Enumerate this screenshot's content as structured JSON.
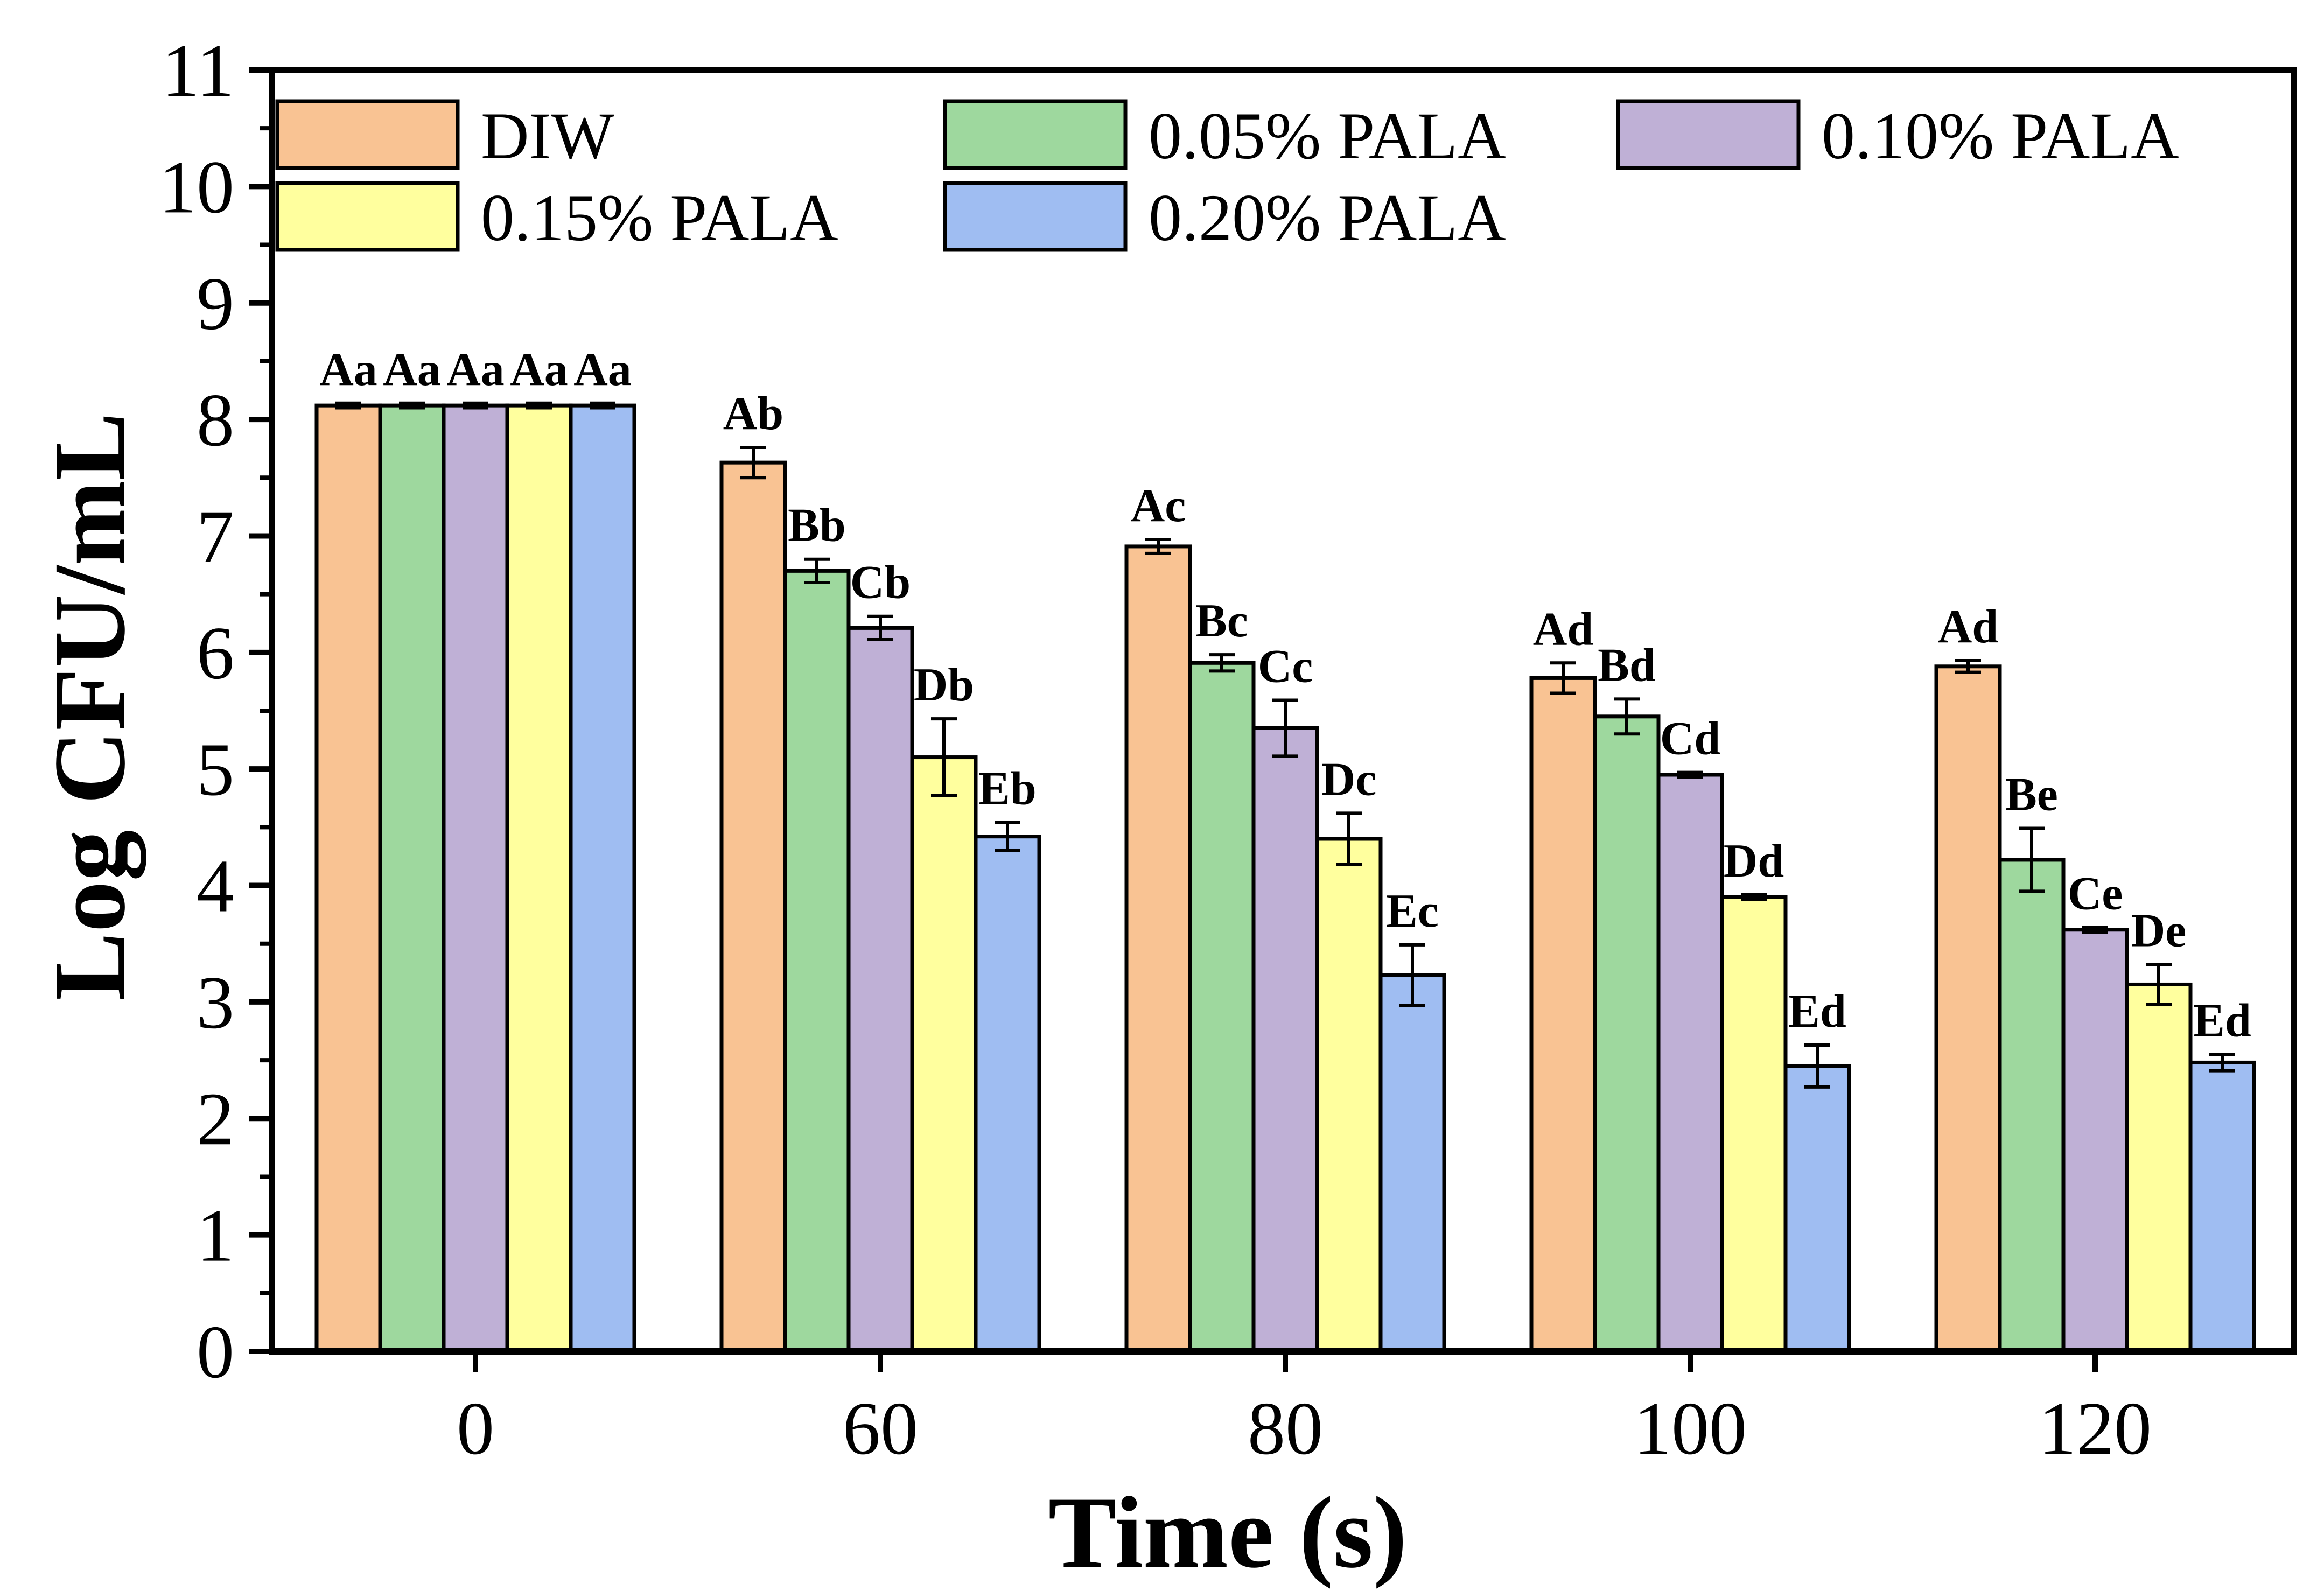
{
  "chart_data": {
    "type": "bar",
    "title": "",
    "xlabel": "Time (s)",
    "ylabel": "Log CFU/mL",
    "ylim": [
      0,
      11
    ],
    "yticks": [
      0,
      1,
      2,
      3,
      4,
      5,
      6,
      7,
      8,
      9,
      10,
      11
    ],
    "categories": [
      "0",
      "60",
      "80",
      "100",
      "120"
    ],
    "grid": false,
    "legend_position": "top",
    "series": [
      {
        "name": "DIW",
        "color": "#F9C393",
        "values": [
          8.12,
          7.63,
          6.91,
          5.78,
          5.88
        ],
        "errors": [
          0.02,
          0.13,
          0.06,
          0.13,
          0.05
        ],
        "labels": [
          "Aa",
          "Ab",
          "Ac",
          "Ad",
          "Ad"
        ]
      },
      {
        "name": "0.05% PALA",
        "color": "#9ED89E",
        "values": [
          8.12,
          6.7,
          5.91,
          5.45,
          4.22
        ],
        "errors": [
          0.02,
          0.1,
          0.07,
          0.15,
          0.27
        ],
        "labels": [
          "Aa",
          "Bb",
          "Bc",
          "Bd",
          "Be"
        ]
      },
      {
        "name": "0.10% PALA",
        "color": "#BFB0D6",
        "values": [
          8.12,
          6.21,
          5.35,
          4.95,
          3.62
        ],
        "errors": [
          0.02,
          0.1,
          0.24,
          0.02,
          0.02
        ],
        "labels": [
          "Aa",
          "Cb",
          "Cc",
          "Cd",
          "Ce"
        ]
      },
      {
        "name": "0.15% PALA",
        "color": "#FFFF9E",
        "values": [
          8.12,
          5.1,
          4.4,
          3.9,
          3.15
        ],
        "errors": [
          0.02,
          0.33,
          0.22,
          0.02,
          0.17
        ],
        "labels": [
          "Aa",
          "Db",
          "Dc",
          "Dd",
          "De"
        ]
      },
      {
        "name": "0.20% PALA",
        "color": "#9FBDF2",
        "values": [
          8.12,
          4.42,
          3.23,
          2.45,
          2.48
        ],
        "errors": [
          0.02,
          0.12,
          0.26,
          0.18,
          0.07
        ],
        "labels": [
          "Aa",
          "Eb",
          "Ec",
          "Ed",
          "Ed"
        ]
      }
    ]
  }
}
